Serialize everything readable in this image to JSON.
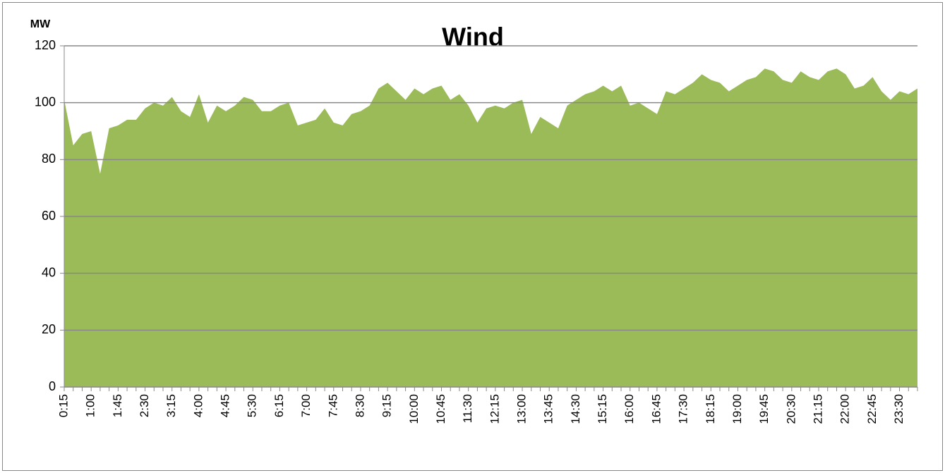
{
  "chart_data": {
    "type": "area",
    "title": "Wind",
    "y_label": "MW",
    "color": "#9bbb59",
    "grid": true,
    "ylim": [
      0,
      120
    ],
    "yticks": [
      0,
      20,
      40,
      60,
      80,
      100,
      120
    ],
    "categories": [
      "0:15",
      null,
      null,
      "1:00",
      null,
      null,
      "1:45",
      null,
      null,
      "2:30",
      null,
      null,
      "3:15",
      null,
      null,
      "4:00",
      null,
      null,
      "4:45",
      null,
      null,
      "5:30",
      null,
      null,
      "6:15",
      null,
      null,
      "7:00",
      null,
      null,
      "7:45",
      null,
      null,
      "8:30",
      null,
      null,
      "9:15",
      null,
      null,
      "10:00",
      null,
      null,
      "10:45",
      null,
      null,
      "11:30",
      null,
      null,
      "12:15",
      null,
      null,
      "13:00",
      null,
      null,
      "13:45",
      null,
      null,
      "14:30",
      null,
      null,
      "15:15",
      null,
      null,
      "16:00",
      null,
      null,
      "16:45",
      null,
      null,
      "17:30",
      null,
      null,
      "18:15",
      null,
      null,
      "19:00",
      null,
      null,
      "19:45",
      null,
      null,
      "20:30",
      null,
      null,
      "21:15",
      null,
      null,
      "22:00",
      null,
      null,
      "22:45",
      null,
      null,
      "23:30",
      null,
      null
    ],
    "values": [
      101,
      85,
      89,
      90,
      75,
      91,
      92,
      94,
      94,
      98,
      100,
      99,
      102,
      97,
      95,
      103,
      93,
      99,
      97,
      99,
      102,
      101,
      97,
      97,
      99,
      100,
      92,
      93,
      94,
      98,
      93,
      92,
      96,
      97,
      99,
      105,
      107,
      104,
      101,
      105,
      103,
      105,
      106,
      101,
      103,
      99,
      93,
      98,
      99,
      98,
      100,
      101,
      89,
      95,
      93,
      91,
      99,
      101,
      103,
      104,
      106,
      104,
      106,
      99,
      100,
      98,
      96,
      104,
      103,
      105,
      107,
      110,
      108,
      107,
      104,
      106,
      108,
      109,
      112,
      111,
      108,
      107,
      111,
      109,
      108,
      111,
      112,
      110,
      105,
      106,
      109,
      104,
      101,
      104,
      103,
      105
    ]
  }
}
